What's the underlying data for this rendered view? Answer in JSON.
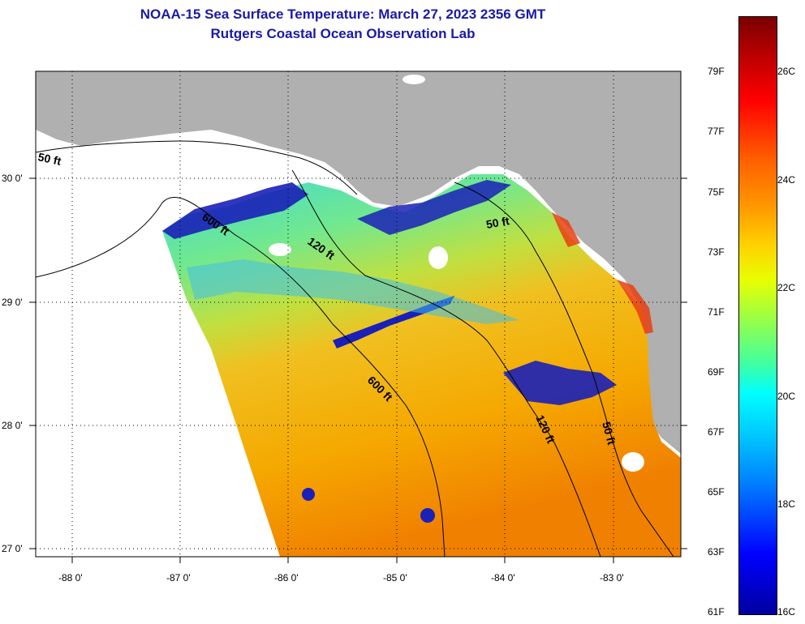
{
  "header": {
    "title": "NOAA-15 Sea Surface Temperature:  March 27, 2023 2356 GMT",
    "subtitle": "Rutgers Coastal Ocean Observation Lab"
  },
  "axes": {
    "lon_labels": [
      "-88 0'",
      "-87 0'",
      "-86 0'",
      "-85 0'",
      "-84 0'",
      "-83 0'"
    ],
    "lat_labels": [
      "30 0'",
      "29 0'",
      "28 0'",
      "27 0'"
    ]
  },
  "contours": {
    "labels": [
      "50 ft",
      "600 ft",
      "120 ft",
      "50 ft",
      "600 ft",
      "120 ft",
      "50 ft"
    ]
  },
  "colorbar": {
    "fahrenheit": [
      "79F",
      "77F",
      "75F",
      "73F",
      "71F",
      "69F",
      "67F",
      "65F",
      "63F",
      "61F"
    ],
    "celsius": [
      "26C",
      "24C",
      "22C",
      "20C",
      "18C",
      "16C"
    ],
    "range_c": [
      16,
      27
    ]
  },
  "colors": {
    "land": "#b0b0b0",
    "title": "#1a1aa6",
    "warm": "#f0a000",
    "cool": "#60e0a0",
    "cold": "#1010b0"
  }
}
